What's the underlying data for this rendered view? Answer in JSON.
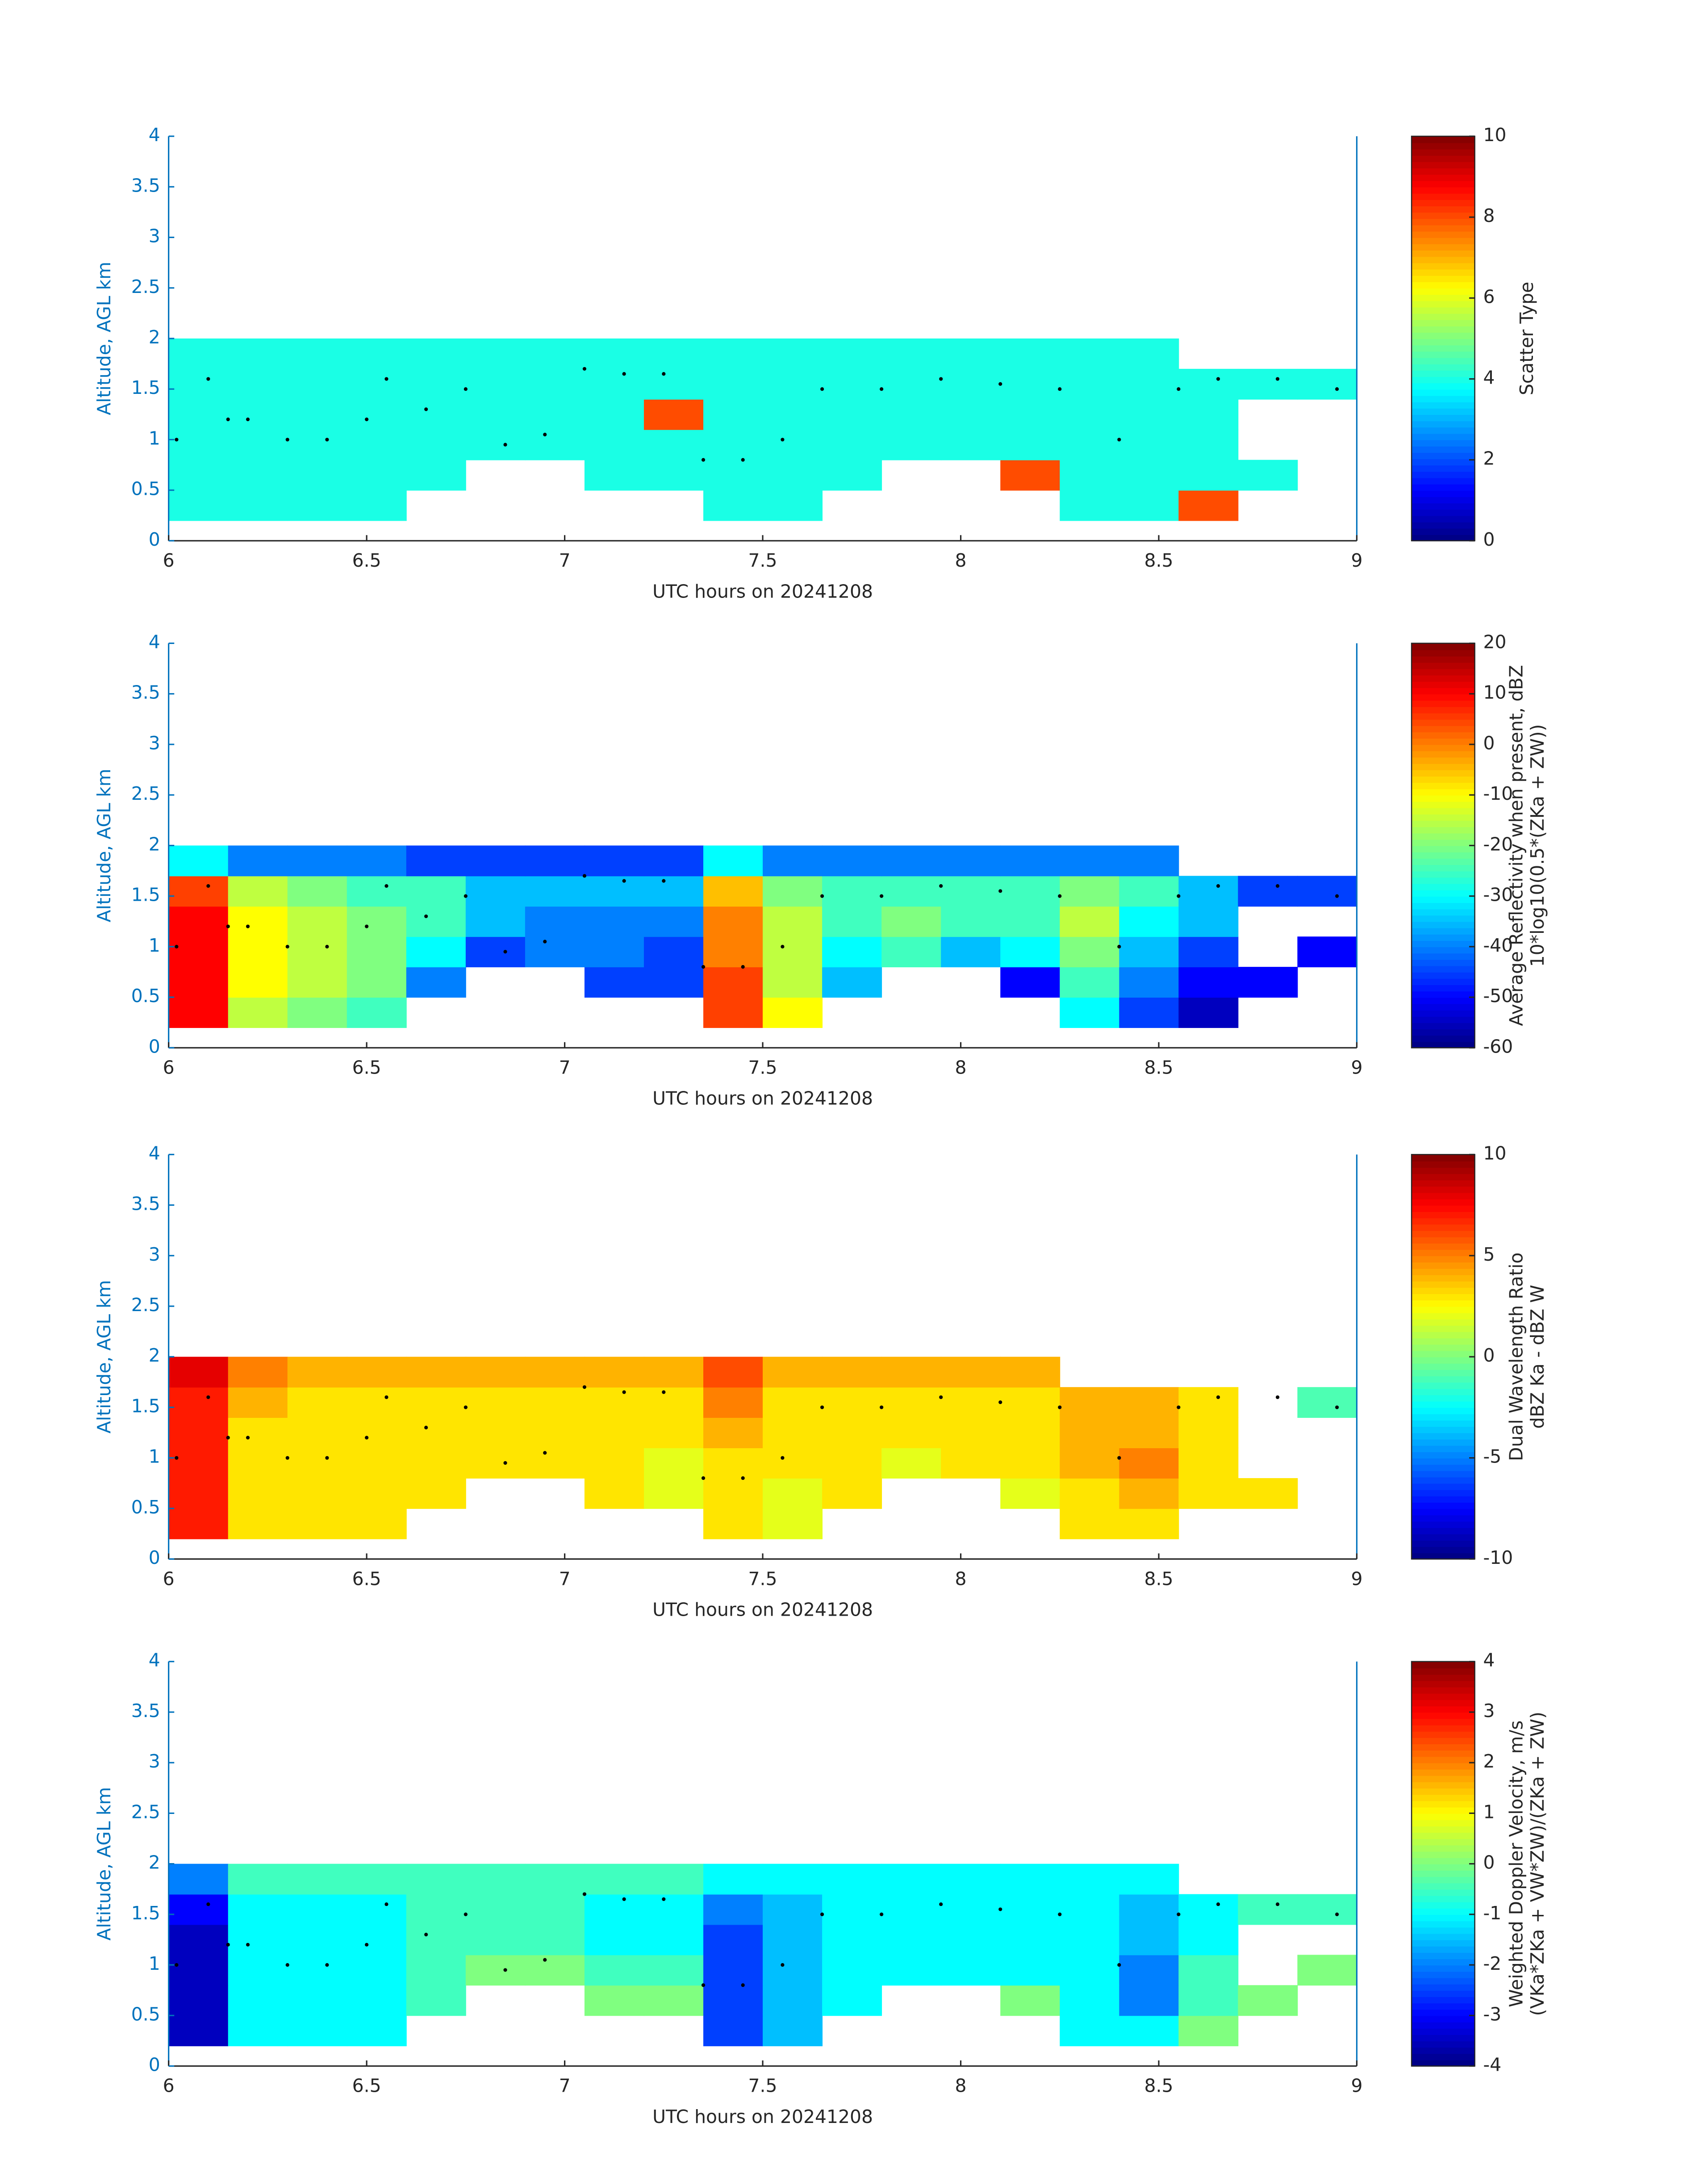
{
  "chart_data": [
    {
      "type": "heatmap",
      "xlabel": "UTC hours on 20241208",
      "ylabel": "Altitude, AGL km",
      "xlim": [
        6,
        9
      ],
      "xticks": [
        6,
        6.5,
        7,
        7.5,
        8,
        8.5,
        9
      ],
      "ylim": [
        0,
        4
      ],
      "yticks": [
        0,
        0.5,
        1,
        1.5,
        2,
        2.5,
        3,
        3.5,
        4
      ],
      "xbins": [
        6,
        6.15,
        6.3,
        6.45,
        6.6,
        6.75,
        6.9,
        7.05,
        7.2,
        7.35,
        7.5,
        7.65,
        7.8,
        7.95,
        8.1,
        8.25,
        8.4,
        8.55,
        8.7,
        8.85,
        9
      ],
      "ybins": [
        0.2,
        0.5,
        0.8,
        1.1,
        1.4,
        1.7,
        2.0
      ],
      "colormap": "jet",
      "clim": [
        0,
        10
      ],
      "cticks": [
        0,
        2,
        4,
        6,
        8,
        10
      ],
      "clabel": [
        "Scatter Type"
      ],
      "z": [
        [
          4,
          4,
          4,
          4,
          null,
          null,
          null,
          null,
          null,
          4,
          4,
          null,
          null,
          null,
          null,
          4,
          4,
          8,
          null,
          null
        ],
        [
          4,
          4,
          4,
          4,
          4,
          null,
          null,
          4,
          4,
          4,
          4,
          4,
          null,
          null,
          8,
          4,
          4,
          4,
          4,
          null
        ],
        [
          4,
          4,
          4,
          4,
          4,
          4,
          4,
          4,
          4,
          4,
          4,
          4,
          4,
          4,
          4,
          4,
          4,
          4,
          null,
          null
        ],
        [
          4,
          4,
          4,
          4,
          4,
          4,
          4,
          4,
          8,
          4,
          4,
          4,
          4,
          4,
          4,
          4,
          4,
          4,
          null,
          null
        ],
        [
          4,
          4,
          4,
          4,
          4,
          4,
          4,
          4,
          4,
          4,
          4,
          4,
          4,
          4,
          4,
          4,
          4,
          4,
          4,
          4
        ],
        [
          4,
          4,
          4,
          4,
          4,
          4,
          4,
          4,
          4,
          4,
          4,
          4,
          4,
          4,
          4,
          4,
          4,
          null,
          null,
          null
        ]
      ],
      "points": {
        "x": [
          6.02,
          6.1,
          6.15,
          6.2,
          6.3,
          6.4,
          6.5,
          6.55,
          6.65,
          6.75,
          6.85,
          6.95,
          7.05,
          7.15,
          7.25,
          7.35,
          7.45,
          7.55,
          7.65,
          7.8,
          7.95,
          8.1,
          8.25,
          8.4,
          8.55,
          8.65,
          8.8,
          8.95
        ],
        "y": [
          1.0,
          1.6,
          1.2,
          1.2,
          1.0,
          1.0,
          1.2,
          1.6,
          1.3,
          1.5,
          0.95,
          1.05,
          1.7,
          1.65,
          1.65,
          0.8,
          0.8,
          1.0,
          1.5,
          1.5,
          1.6,
          1.55,
          1.5,
          1.0,
          1.5,
          1.6,
          1.6,
          1.5
        ]
      }
    },
    {
      "type": "heatmap",
      "xlabel": "UTC hours on 20241208",
      "ylabel": "Altitude, AGL km",
      "xlim": [
        6,
        9
      ],
      "xticks": [
        6,
        6.5,
        7,
        7.5,
        8,
        8.5,
        9
      ],
      "ylim": [
        0,
        4
      ],
      "yticks": [
        0,
        0.5,
        1,
        1.5,
        2,
        2.5,
        3,
        3.5,
        4
      ],
      "xbins": [
        6,
        6.15,
        6.3,
        6.45,
        6.6,
        6.75,
        6.9,
        7.05,
        7.2,
        7.35,
        7.5,
        7.65,
        7.8,
        7.95,
        8.1,
        8.25,
        8.4,
        8.55,
        8.7,
        8.85,
        9
      ],
      "ybins": [
        0.2,
        0.5,
        0.8,
        1.1,
        1.4,
        1.7,
        2.0
      ],
      "colormap": "jet",
      "clim": [
        -60,
        20
      ],
      "cticks": [
        -60,
        -50,
        -40,
        -30,
        -20,
        -10,
        0,
        10,
        20
      ],
      "clabel": [
        "Average Reflectivity when present, dBZ",
        "10*log10(0.5*(ZKa + ZW))"
      ],
      "z": [
        [
          10,
          -15,
          -20,
          -25,
          null,
          null,
          null,
          null,
          null,
          5,
          -10,
          null,
          null,
          null,
          null,
          -30,
          -45,
          -55,
          null,
          null
        ],
        [
          10,
          -10,
          -15,
          -20,
          -40,
          null,
          null,
          -45,
          -45,
          5,
          -15,
          -35,
          null,
          null,
          -50,
          -25,
          -40,
          -50,
          -50,
          null
        ],
        [
          10,
          -10,
          -15,
          -20,
          -30,
          -45,
          -40,
          -40,
          -45,
          0,
          -15,
          -30,
          -25,
          -35,
          -30,
          -20,
          -35,
          -45,
          null,
          -50
        ],
        [
          10,
          -10,
          -15,
          -20,
          -25,
          -35,
          -40,
          -40,
          -40,
          0,
          -15,
          -25,
          -20,
          -25,
          -25,
          -15,
          -30,
          -35,
          null,
          null
        ],
        [
          5,
          -15,
          -20,
          -25,
          -25,
          -35,
          -35,
          -35,
          -35,
          -5,
          -20,
          -25,
          -25,
          -25,
          -25,
          -20,
          -25,
          -35,
          -45,
          -45
        ],
        [
          -30,
          -40,
          -40,
          -40,
          -45,
          -45,
          -45,
          -45,
          -45,
          -30,
          -40,
          -40,
          -40,
          -40,
          -40,
          -40,
          -40,
          null,
          null,
          null
        ]
      ],
      "points": {
        "x": [
          6.02,
          6.1,
          6.15,
          6.2,
          6.3,
          6.4,
          6.5,
          6.55,
          6.65,
          6.75,
          6.85,
          6.95,
          7.05,
          7.15,
          7.25,
          7.35,
          7.45,
          7.55,
          7.65,
          7.8,
          7.95,
          8.1,
          8.25,
          8.4,
          8.55,
          8.65,
          8.8,
          8.95
        ],
        "y": [
          1.0,
          1.6,
          1.2,
          1.2,
          1.0,
          1.0,
          1.2,
          1.6,
          1.3,
          1.5,
          0.95,
          1.05,
          1.7,
          1.65,
          1.65,
          0.8,
          0.8,
          1.0,
          1.5,
          1.5,
          1.6,
          1.55,
          1.5,
          1.0,
          1.5,
          1.6,
          1.6,
          1.5
        ]
      }
    },
    {
      "type": "heatmap",
      "xlabel": "UTC hours on 20241208",
      "ylabel": "Altitude, AGL km",
      "xlim": [
        6,
        9
      ],
      "xticks": [
        6,
        6.5,
        7,
        7.5,
        8,
        8.5,
        9
      ],
      "ylim": [
        0,
        4
      ],
      "yticks": [
        0,
        0.5,
        1,
        1.5,
        2,
        2.5,
        3,
        3.5,
        4
      ],
      "xbins": [
        6,
        6.15,
        6.3,
        6.45,
        6.6,
        6.75,
        6.9,
        7.05,
        7.2,
        7.35,
        7.5,
        7.65,
        7.8,
        7.95,
        8.1,
        8.25,
        8.4,
        8.55,
        8.7,
        8.85,
        9
      ],
      "ybins": [
        0.2,
        0.5,
        0.8,
        1.1,
        1.4,
        1.7,
        2.0
      ],
      "colormap": "jet",
      "clim": [
        -10,
        10
      ],
      "cticks": [
        -10,
        -5,
        0,
        5,
        10
      ],
      "clabel": [
        "Dual Wavelength Ratio",
        "dBZ Ka - dBZ W"
      ],
      "z": [
        [
          7,
          3,
          3,
          3,
          null,
          null,
          null,
          null,
          null,
          3,
          2,
          null,
          null,
          null,
          null,
          3,
          3,
          null,
          null,
          null
        ],
        [
          7,
          3,
          3,
          3,
          3,
          null,
          null,
          3,
          2,
          3,
          2,
          3,
          null,
          null,
          2,
          3,
          4,
          3,
          3,
          null
        ],
        [
          7,
          3,
          3,
          3,
          3,
          3,
          3,
          3,
          2,
          3,
          3,
          3,
          2,
          3,
          3,
          4,
          5,
          3,
          null,
          null
        ],
        [
          7,
          3,
          3,
          3,
          3,
          3,
          3,
          3,
          3,
          4,
          3,
          3,
          3,
          3,
          3,
          4,
          4,
          3,
          null,
          null
        ],
        [
          7,
          4,
          3,
          3,
          3,
          3,
          3,
          3,
          3,
          5,
          3,
          3,
          3,
          3,
          3,
          4,
          4,
          3,
          null,
          -1
        ],
        [
          8,
          5,
          4,
          4,
          4,
          4,
          4,
          4,
          4,
          6,
          4,
          4,
          4,
          4,
          4,
          null,
          null,
          null,
          null,
          null
        ]
      ],
      "points": {
        "x": [
          6.02,
          6.1,
          6.15,
          6.2,
          6.3,
          6.4,
          6.5,
          6.55,
          6.65,
          6.75,
          6.85,
          6.95,
          7.05,
          7.15,
          7.25,
          7.35,
          7.45,
          7.55,
          7.65,
          7.8,
          7.95,
          8.1,
          8.25,
          8.4,
          8.55,
          8.65,
          8.8,
          8.95
        ],
        "y": [
          1.0,
          1.6,
          1.2,
          1.2,
          1.0,
          1.0,
          1.2,
          1.6,
          1.3,
          1.5,
          0.95,
          1.05,
          1.7,
          1.65,
          1.65,
          0.8,
          0.8,
          1.0,
          1.5,
          1.5,
          1.6,
          1.55,
          1.5,
          1.0,
          1.5,
          1.6,
          1.6,
          1.5
        ]
      }
    },
    {
      "type": "heatmap",
      "xlabel": "UTC hours on 20241208",
      "ylabel": "Altitude, AGL km",
      "xlim": [
        6,
        9
      ],
      "xticks": [
        6,
        6.5,
        7,
        7.5,
        8,
        8.5,
        9
      ],
      "ylim": [
        0,
        4
      ],
      "yticks": [
        0,
        0.5,
        1,
        1.5,
        2,
        2.5,
        3,
        3.5,
        4
      ],
      "xbins": [
        6,
        6.15,
        6.3,
        6.45,
        6.6,
        6.75,
        6.9,
        7.05,
        7.2,
        7.35,
        7.5,
        7.65,
        7.8,
        7.95,
        8.1,
        8.25,
        8.4,
        8.55,
        8.7,
        8.85,
        9
      ],
      "ybins": [
        0.2,
        0.5,
        0.8,
        1.1,
        1.4,
        1.7,
        2.0
      ],
      "colormap": "jet",
      "clim": [
        -4,
        4
      ],
      "cticks": [
        -4,
        -3,
        -2,
        -1,
        0,
        1,
        2,
        3,
        4
      ],
      "clabel": [
        "Weighted Doppler Velocity, m/s",
        "(VKa*ZKa + VW*ZW)/(ZKa + ZW)"
      ],
      "z": [
        [
          -3.5,
          -1,
          -1,
          -1,
          null,
          null,
          null,
          null,
          null,
          -2.5,
          -1.5,
          null,
          null,
          null,
          null,
          -1,
          -1,
          0,
          null,
          null
        ],
        [
          -3.5,
          -1,
          -1,
          -1,
          -0.5,
          null,
          null,
          0,
          0,
          -2.5,
          -1.5,
          -1,
          null,
          null,
          0,
          -1,
          -2,
          -0.5,
          0,
          null
        ],
        [
          -3.5,
          -1,
          -1,
          -1,
          -0.5,
          0,
          0,
          -0.5,
          -0.5,
          -2.5,
          -1.5,
          -1,
          -1,
          -1,
          -1,
          -1,
          -2,
          -0.5,
          null,
          0
        ],
        [
          -3.5,
          -1,
          -1,
          -1,
          -0.5,
          -0.5,
          -0.5,
          -1,
          -1,
          -2.5,
          -1.5,
          -1,
          -1,
          -1,
          -1,
          -1,
          -1.5,
          -1,
          null,
          null
        ],
        [
          -3,
          -1,
          -1,
          -1,
          -0.5,
          -0.5,
          -0.5,
          -1,
          -1,
          -2,
          -1.5,
          -1,
          -1,
          -1,
          -1,
          -1,
          -1.5,
          -1,
          -0.5,
          -0.5
        ],
        [
          -2,
          -0.5,
          -0.5,
          -0.5,
          -0.5,
          -0.5,
          -0.5,
          -0.5,
          -0.5,
          -1,
          -1,
          -1,
          -1,
          -1,
          -1,
          -1,
          -1,
          null,
          null,
          null
        ]
      ],
      "points": {
        "x": [
          6.02,
          6.1,
          6.15,
          6.2,
          6.3,
          6.4,
          6.5,
          6.55,
          6.65,
          6.75,
          6.85,
          6.95,
          7.05,
          7.15,
          7.25,
          7.35,
          7.45,
          7.55,
          7.65,
          7.8,
          7.95,
          8.1,
          8.25,
          8.4,
          8.55,
          8.65,
          8.8,
          8.95
        ],
        "y": [
          1.0,
          1.6,
          1.2,
          1.2,
          1.0,
          1.0,
          1.2,
          1.6,
          1.3,
          1.5,
          0.95,
          1.05,
          1.7,
          1.65,
          1.65,
          0.8,
          0.8,
          1.0,
          1.5,
          1.5,
          1.6,
          1.55,
          1.5,
          1.0,
          1.5,
          1.6,
          1.6,
          1.5
        ]
      }
    }
  ]
}
